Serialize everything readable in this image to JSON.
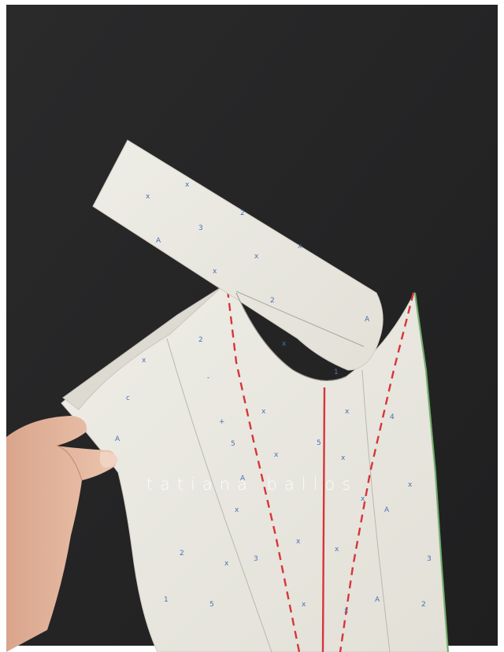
{
  "watermark": {
    "text": "tatiana ballos"
  },
  "colors": {
    "table": "#262627",
    "paper": "#ecebe3",
    "paper_shadow": "#d6d4ca",
    "dart_line": "#d8343a",
    "print_marks": "#4a6fb8",
    "skin": "#e2b49c",
    "edge_green": "#6fae6a"
  },
  "print_marks": [
    "x",
    "2",
    "3",
    "1",
    "5",
    "A",
    "4",
    "-"
  ]
}
